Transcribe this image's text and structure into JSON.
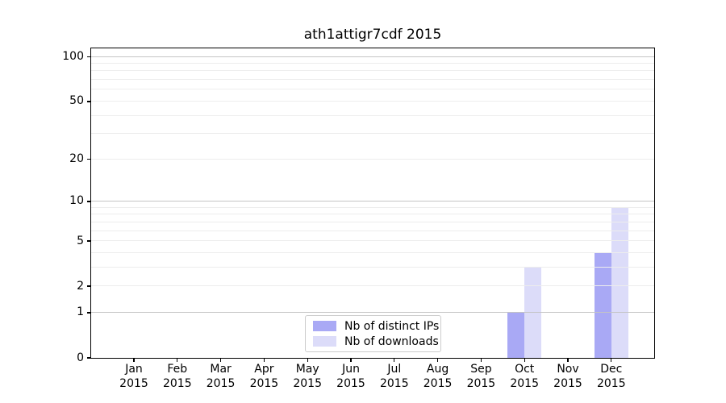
{
  "title": "ath1attigr7cdf 2015",
  "colors": {
    "bar_distinct_ips": "#a9a9f5",
    "bar_downloads": "#dcdcf9",
    "grid_major": "#c4c4c4",
    "grid_minor": "#ededed",
    "axis_frame": "#000000",
    "text": "#000000",
    "legend_border": "#cccccc",
    "background": "#ffffff"
  },
  "legend": {
    "items": [
      {
        "label": "Nb of distinct IPs",
        "color": "#a9a9f5"
      },
      {
        "label": "Nb of downloads",
        "color": "#dcdcf9"
      }
    ]
  },
  "chart_data": {
    "type": "bar",
    "title": "ath1attigr7cdf 2015",
    "categories": [
      "Jan 2015",
      "Feb 2015",
      "Mar 2015",
      "Apr 2015",
      "May 2015",
      "Jun 2015",
      "Jul 2015",
      "Aug 2015",
      "Sep 2015",
      "Oct 2015",
      "Nov 2015",
      "Dec 2015"
    ],
    "x_tick_months": [
      "Jan",
      "Feb",
      "Mar",
      "Apr",
      "May",
      "Jun",
      "Jul",
      "Aug",
      "Sep",
      "Oct",
      "Nov",
      "Dec"
    ],
    "x_tick_year": "2015",
    "series": [
      {
        "name": "Nb of distinct IPs",
        "color": "#a9a9f5",
        "values": [
          0,
          0,
          0,
          0,
          0,
          0,
          0,
          0,
          0,
          1,
          0,
          4
        ]
      },
      {
        "name": "Nb of downloads",
        "color": "#dcdcf9",
        "values": [
          0,
          0,
          0,
          0,
          0,
          0,
          0,
          0,
          0,
          3,
          0,
          9
        ]
      }
    ],
    "xlabel": "",
    "ylabel": "",
    "yscale": "log10(1+value)",
    "ylim": [
      0,
      113
    ],
    "y_tick_values": [
      0,
      1,
      2,
      5,
      10,
      20,
      50,
      100
    ],
    "y_tick_labels": [
      "0",
      "1",
      "2",
      "5",
      "10",
      "20",
      "50",
      "100"
    ],
    "y_major_grid_values": [
      1,
      10,
      100
    ],
    "y_minor_grid_values": [
      2,
      3,
      4,
      5,
      6,
      7,
      8,
      9,
      20,
      30,
      40,
      50,
      60,
      70,
      80,
      90
    ],
    "grid": "on, drawn above bars",
    "legend_position": "lower center"
  }
}
